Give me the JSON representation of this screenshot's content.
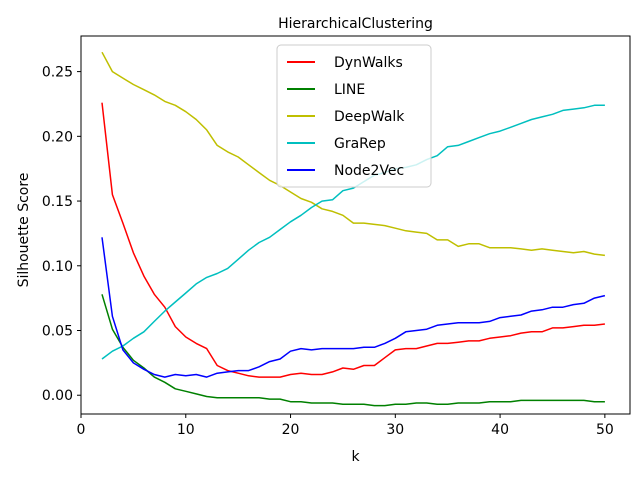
{
  "chart_data": {
    "type": "line",
    "title": "HierarchicalClustering",
    "xlabel": "k",
    "ylabel": "Silhouette Score",
    "xlim": [
      0,
      52.4
    ],
    "ylim": [
      -0.0145,
      0.2775
    ],
    "xticks": [
      0,
      10,
      20,
      30,
      40,
      50
    ],
    "yticks": [
      0.0,
      0.05,
      0.1,
      0.15,
      0.2,
      0.25
    ],
    "xtick_labels": [
      "0",
      "10",
      "20",
      "30",
      "40",
      "50"
    ],
    "ytick_labels": [
      "0.00",
      "0.05",
      "0.10",
      "0.15",
      "0.20",
      "0.25"
    ],
    "grid": false,
    "legend_position": "upper center",
    "x": [
      2,
      3,
      4,
      5,
      6,
      7,
      8,
      9,
      10,
      11,
      12,
      13,
      14,
      15,
      16,
      17,
      18,
      19,
      20,
      21,
      22,
      23,
      24,
      25,
      26,
      27,
      28,
      29,
      30,
      31,
      32,
      33,
      34,
      35,
      36,
      37,
      38,
      39,
      40,
      41,
      42,
      43,
      44,
      45,
      46,
      47,
      48,
      49,
      50
    ],
    "series": [
      {
        "name": "DynWalks",
        "color": "#ff0000",
        "values": [
          0.226,
          0.155,
          0.133,
          0.11,
          0.092,
          0.078,
          0.068,
          0.053,
          0.045,
          0.04,
          0.036,
          0.023,
          0.019,
          0.017,
          0.015,
          0.014,
          0.014,
          0.014,
          0.016,
          0.017,
          0.016,
          0.016,
          0.018,
          0.021,
          0.02,
          0.023,
          0.023,
          0.029,
          0.035,
          0.036,
          0.036,
          0.038,
          0.04,
          0.04,
          0.041,
          0.042,
          0.042,
          0.044,
          0.045,
          0.046,
          0.048,
          0.049,
          0.049,
          0.052,
          0.052,
          0.053,
          0.054,
          0.054,
          0.055
        ]
      },
      {
        "name": "LINE",
        "color": "#008000",
        "values": [
          0.078,
          0.051,
          0.037,
          0.027,
          0.021,
          0.014,
          0.01,
          0.005,
          0.003,
          0.001,
          -0.001,
          -0.002,
          -0.002,
          -0.002,
          -0.002,
          -0.002,
          -0.003,
          -0.003,
          -0.005,
          -0.005,
          -0.006,
          -0.006,
          -0.006,
          -0.007,
          -0.007,
          -0.007,
          -0.008,
          -0.008,
          -0.007,
          -0.007,
          -0.006,
          -0.006,
          -0.007,
          -0.007,
          -0.006,
          -0.006,
          -0.006,
          -0.005,
          -0.005,
          -0.005,
          -0.004,
          -0.004,
          -0.004,
          -0.004,
          -0.004,
          -0.004,
          -0.004,
          -0.005,
          -0.005
        ]
      },
      {
        "name": "DeepWalk",
        "color": "#bfbf00",
        "values": [
          0.265,
          0.25,
          0.245,
          0.24,
          0.236,
          0.232,
          0.227,
          0.224,
          0.219,
          0.213,
          0.205,
          0.193,
          0.188,
          0.184,
          0.178,
          0.172,
          0.166,
          0.162,
          0.157,
          0.152,
          0.149,
          0.144,
          0.142,
          0.139,
          0.133,
          0.133,
          0.132,
          0.131,
          0.129,
          0.127,
          0.126,
          0.125,
          0.12,
          0.12,
          0.115,
          0.117,
          0.117,
          0.114,
          0.114,
          0.114,
          0.113,
          0.112,
          0.113,
          0.112,
          0.111,
          0.11,
          0.111,
          0.109,
          0.108
        ]
      },
      {
        "name": "GraRep",
        "color": "#00bfbf",
        "values": [
          0.028,
          0.034,
          0.038,
          0.044,
          0.049,
          0.057,
          0.065,
          0.072,
          0.079,
          0.086,
          0.091,
          0.094,
          0.098,
          0.105,
          0.112,
          0.118,
          0.122,
          0.128,
          0.134,
          0.139,
          0.145,
          0.15,
          0.151,
          0.158,
          0.16,
          0.165,
          0.17,
          0.172,
          0.175,
          0.176,
          0.178,
          0.182,
          0.185,
          0.192,
          0.193,
          0.196,
          0.199,
          0.202,
          0.204,
          0.207,
          0.21,
          0.213,
          0.215,
          0.217,
          0.22,
          0.221,
          0.222,
          0.224,
          0.224
        ]
      },
      {
        "name": "Node2Vec",
        "color": "#0000ff",
        "values": [
          0.122,
          0.061,
          0.035,
          0.025,
          0.02,
          0.016,
          0.014,
          0.016,
          0.015,
          0.016,
          0.014,
          0.017,
          0.018,
          0.019,
          0.019,
          0.022,
          0.026,
          0.028,
          0.034,
          0.036,
          0.035,
          0.036,
          0.036,
          0.036,
          0.036,
          0.037,
          0.037,
          0.04,
          0.044,
          0.049,
          0.05,
          0.051,
          0.054,
          0.055,
          0.056,
          0.056,
          0.056,
          0.057,
          0.06,
          0.061,
          0.062,
          0.065,
          0.066,
          0.068,
          0.068,
          0.07,
          0.071,
          0.075,
          0.077
        ]
      }
    ]
  }
}
